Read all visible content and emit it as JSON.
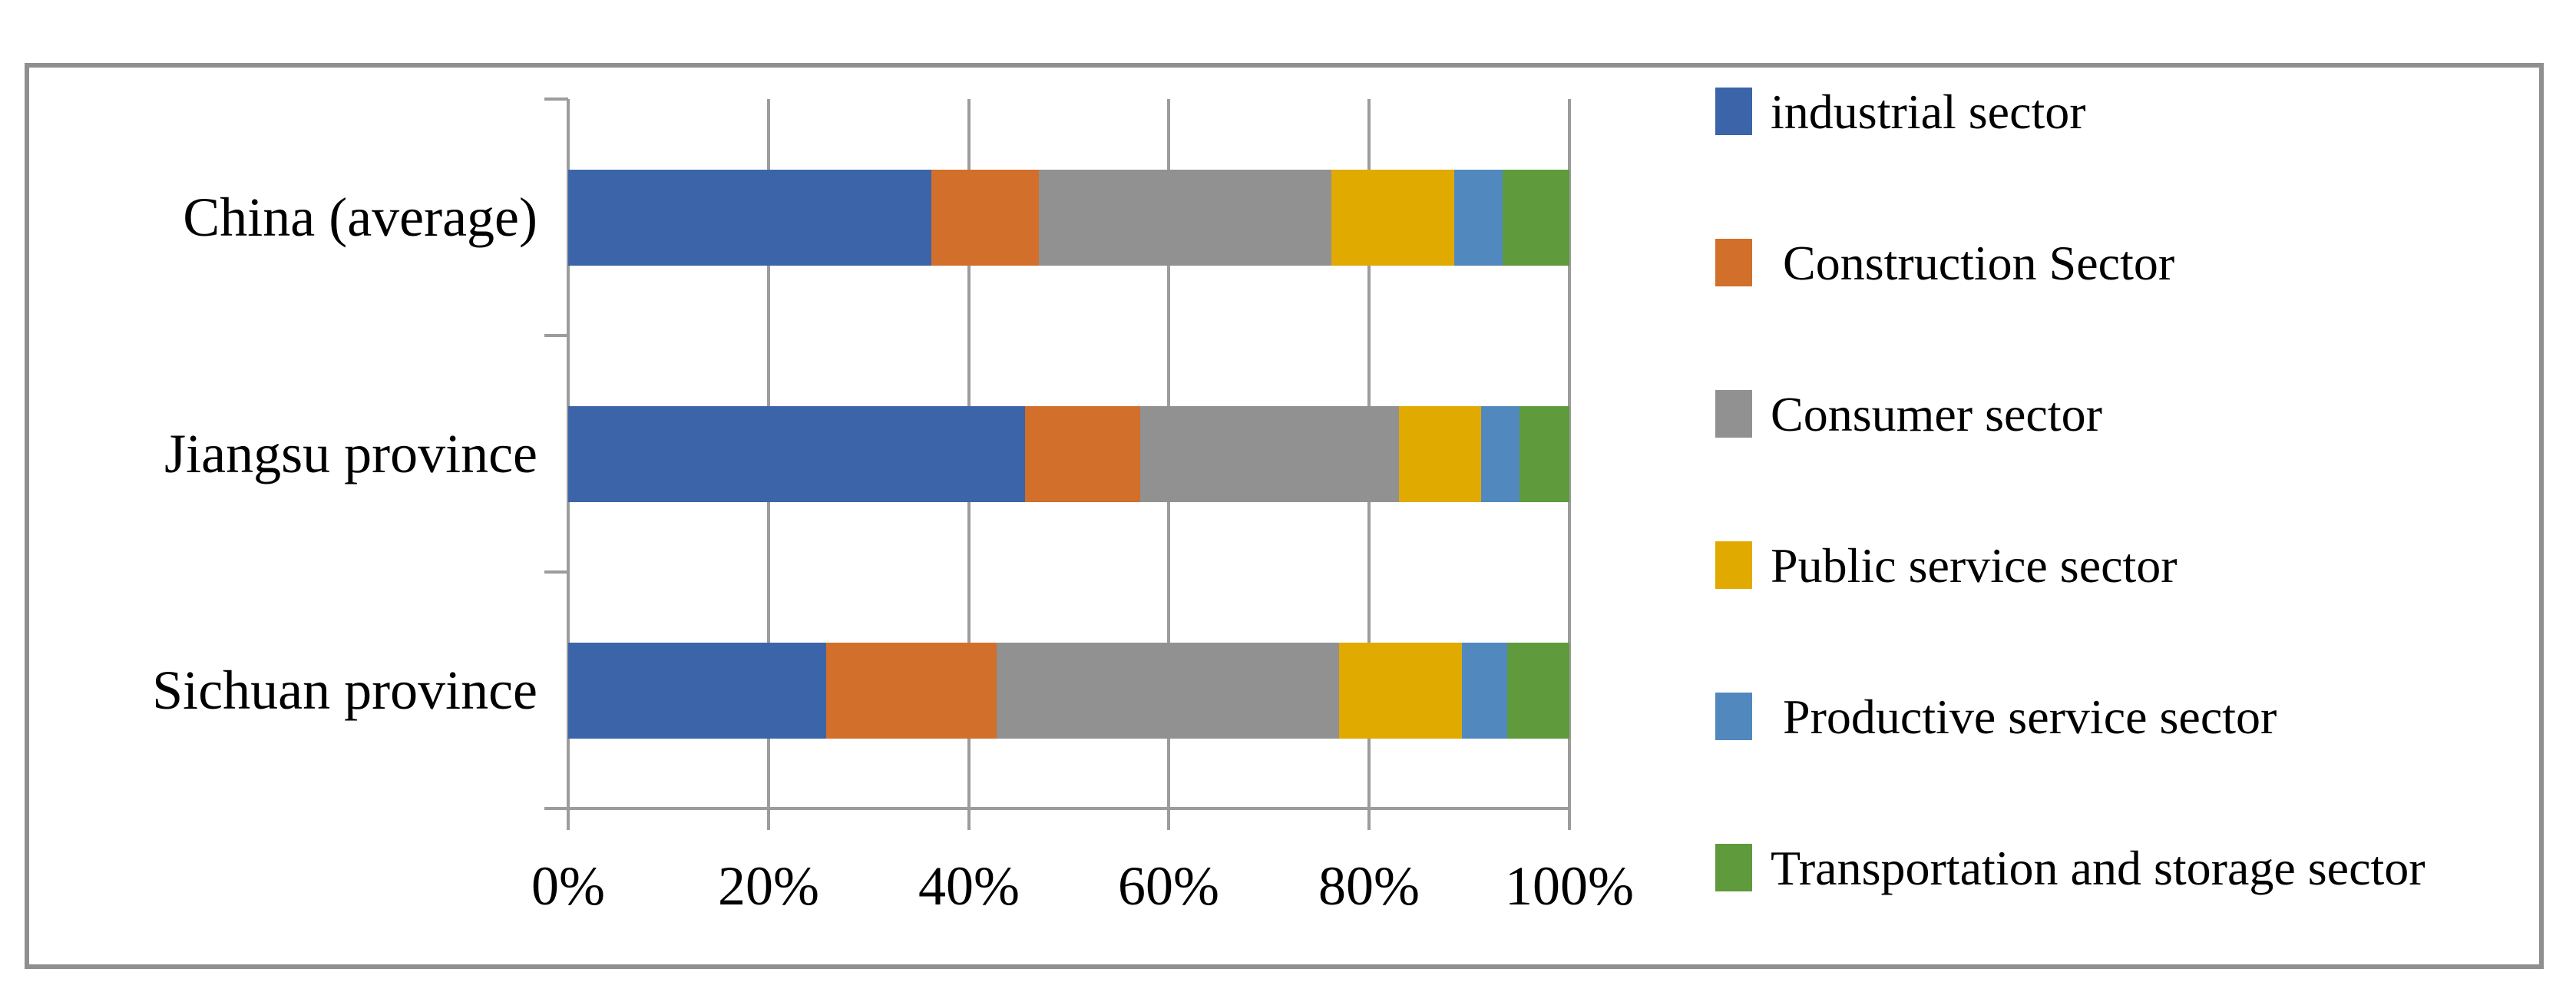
{
  "chart_data": {
    "type": "bar",
    "orientation": "horizontal",
    "stacked": true,
    "title": "",
    "xlabel": "",
    "ylabel": "",
    "x_axis": {
      "min": 0,
      "max": 100,
      "unit": "percent",
      "tick_labels": [
        "0%",
        "20%",
        "40%",
        "60%",
        "80%",
        "100%"
      ],
      "grid": true
    },
    "categories": [
      "China (average)",
      "Jiangsu province",
      "Sichuan province"
    ],
    "series": [
      {
        "name": "industrial sector",
        "color": "#3c64a8",
        "values": [
          36.3,
          45.6,
          25.8
        ]
      },
      {
        "name": " Construction Sector",
        "color": "#d26f2b",
        "values": [
          10.7,
          11.5,
          17.0
        ]
      },
      {
        "name": "Consumer sector",
        "color": "#919191",
        "values": [
          29.2,
          25.9,
          34.2
        ]
      },
      {
        "name": "Public service sector",
        "color": "#e0aa00",
        "values": [
          12.3,
          8.2,
          12.3
        ]
      },
      {
        "name": " Productive service sector",
        "color": "#5189be",
        "values": [
          4.8,
          3.8,
          4.5
        ]
      },
      {
        "name": "Transportation and storage sector",
        "color": "#5f9a3c",
        "values": [
          6.7,
          5.0,
          6.2
        ]
      }
    ],
    "legend": {
      "position": "right",
      "marker": "square"
    },
    "colors": {
      "gridline": "#9c9c9c",
      "frame_border": "#8f8f8f",
      "text": "#000000",
      "background": "#ffffff"
    }
  }
}
